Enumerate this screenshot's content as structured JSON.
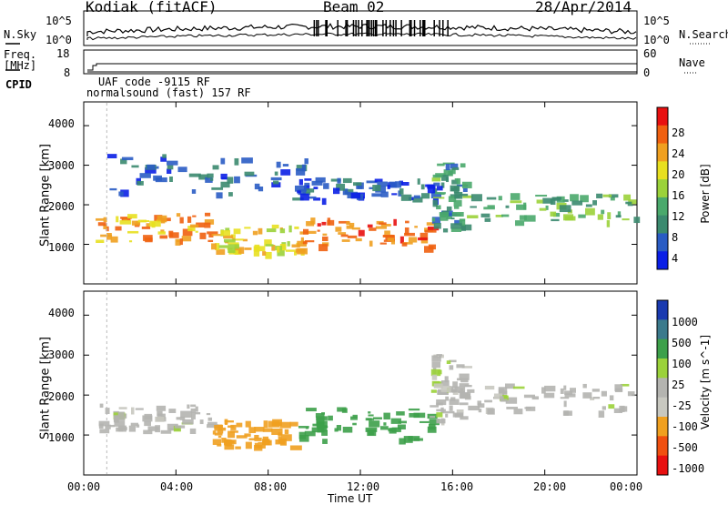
{
  "header": {
    "station": "Kodiak (fitACF)",
    "beam": "Beam 02",
    "date": "28/Apr/2014"
  },
  "noise_panel": {
    "left_label": "N.Sky",
    "right_label": "N.Search",
    "left_ticks": [
      "10^5",
      "10^0"
    ],
    "right_ticks": [
      "10^5",
      "10^0"
    ]
  },
  "freq_panel": {
    "left_label_line1": "Freq.",
    "left_label_line2": "[MHz]",
    "right_label": "Nave",
    "left_ticks": [
      "18",
      "8"
    ],
    "right_ticks": [
      "60",
      "0"
    ]
  },
  "cpid_panel": {
    "label": "CPID",
    "line1": "UAF code -9115 RF",
    "line2": "normalsound (fast) 157 RF"
  },
  "colors": {
    "scale_power": [
      "#0a1fe6",
      "#2a5cc4",
      "#3b8a6f",
      "#4aa96c",
      "#9bd23a",
      "#e8e020",
      "#f0a020",
      "#f06010",
      "#e81010"
    ],
    "scale_velocity": [
      "#e81010",
      "#f05010",
      "#f0a020",
      "#c8c8c0",
      "#b4b4b0",
      "#9bd23a",
      "#3da04a",
      "#3b7a8c",
      "#1a3ab0"
    ]
  },
  "chart_data": [
    {
      "type": "heatmap",
      "title": "",
      "xlabel": "",
      "ylabel": "Slant Range [km]",
      "xlim": [
        "00:00",
        "00:00"
      ],
      "ylim": [
        0,
        4600
      ],
      "y_ticks": [
        "4000",
        "3000",
        "2000",
        "1000"
      ],
      "colorbar": {
        "label": "Power [dB]",
        "ticks": [
          "28",
          "24",
          "20",
          "16",
          "12",
          "8",
          "4"
        ],
        "range": [
          0,
          30
        ]
      },
      "regions": [
        {
          "x": [
            0.5,
            5.5
          ],
          "y": [
            1100,
            1800
          ],
          "value": 22
        },
        {
          "x": [
            5.5,
            9.5
          ],
          "y": [
            800,
            1500
          ],
          "value": 18
        },
        {
          "x": [
            9.5,
            15.0
          ],
          "y": [
            950,
            1700
          ],
          "value": 24
        },
        {
          "x": [
            15.0,
            16.5
          ],
          "y": [
            1400,
            3100
          ],
          "value": 10
        },
        {
          "x": [
            16.5,
            24.0
          ],
          "y": [
            1600,
            2300
          ],
          "value": 12
        },
        {
          "x": [
            1.0,
            10.0
          ],
          "y": [
            2300,
            3300
          ],
          "value": 6
        },
        {
          "x": [
            9.0,
            15.5
          ],
          "y": [
            2100,
            2700
          ],
          "value": 5
        }
      ]
    },
    {
      "type": "heatmap",
      "title": "",
      "xlabel": "Time UT",
      "ylabel": "Slant Range [km]",
      "xlim": [
        "00:00",
        "00:00"
      ],
      "ylim": [
        0,
        4600
      ],
      "x_ticks": [
        "00:00",
        "04:00",
        "08:00",
        "12:00",
        "16:00",
        "20:00",
        "00:00"
      ],
      "y_ticks": [
        "4000",
        "3000",
        "2000",
        "1000"
      ],
      "colorbar": {
        "label": "Velocity [m s^-1]",
        "ticks": [
          "1000",
          "500",
          "100",
          "25",
          "-25",
          "-100",
          "-500",
          "-1000"
        ]
      },
      "regions": [
        {
          "x": [
            0.5,
            5.5
          ],
          "y": [
            1100,
            1800
          ],
          "value": 0
        },
        {
          "x": [
            5.5,
            9.0
          ],
          "y": [
            700,
            1400
          ],
          "value": -300
        },
        {
          "x": [
            9.0,
            15.0
          ],
          "y": [
            900,
            1700
          ],
          "value": 300
        },
        {
          "x": [
            15.0,
            16.5
          ],
          "y": [
            1400,
            3100
          ],
          "value": 0
        },
        {
          "x": [
            16.5,
            24.0
          ],
          "y": [
            1600,
            2300
          ],
          "value": 0
        }
      ]
    }
  ]
}
